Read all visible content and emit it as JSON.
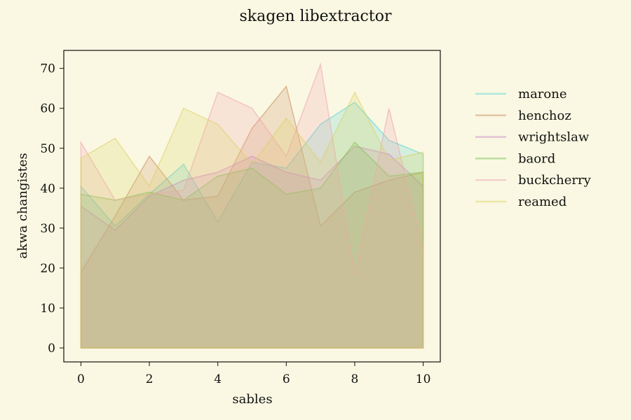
{
  "chart_data": {
    "type": "area",
    "title": "skagen libextractor",
    "xlabel": "sables",
    "ylabel": "akwa changistes",
    "xlim": [
      -0.5,
      10.5
    ],
    "ylim": [
      -3.5,
      74.5
    ],
    "xticks": [
      0,
      2,
      4,
      6,
      8,
      10
    ],
    "yticks": [
      0,
      10,
      20,
      30,
      40,
      50,
      60,
      70
    ],
    "grid": false,
    "legend_position": "right",
    "x": [
      0,
      1,
      2,
      3,
      4,
      5,
      6,
      7,
      8,
      9,
      10
    ],
    "series": [
      {
        "name": "marone",
        "color": "#4fd2d2",
        "values": [
          40.5,
          30.5,
          38.5,
          46,
          31.5,
          46.5,
          45,
          56,
          61.5,
          52,
          48.5
        ]
      },
      {
        "name": "henchoz",
        "color": "#c88a5a",
        "values": [
          19,
          33,
          48,
          37,
          38,
          55,
          65.5,
          30.5,
          39,
          42,
          44
        ]
      },
      {
        "name": "wrightslaw",
        "color": "#c880c8",
        "values": [
          35.5,
          29.5,
          38,
          42,
          44,
          48,
          44,
          42,
          50.5,
          48.5,
          40.5
        ]
      },
      {
        "name": "baord",
        "color": "#6cbf4a",
        "values": [
          38.5,
          37,
          39,
          37,
          43,
          45,
          38.5,
          40,
          51.5,
          43,
          44
        ]
      },
      {
        "name": "buckcherry",
        "color": "#f0a0b0",
        "values": [
          51.5,
          37,
          38.5,
          39.5,
          64,
          60,
          48,
          71,
          18.5,
          60,
          24.5
        ]
      },
      {
        "name": "reamed",
        "color": "#dcd060",
        "values": [
          47.5,
          52.5,
          40.5,
          60,
          56,
          46,
          57.5,
          46.5,
          64,
          47,
          49
        ]
      }
    ]
  }
}
